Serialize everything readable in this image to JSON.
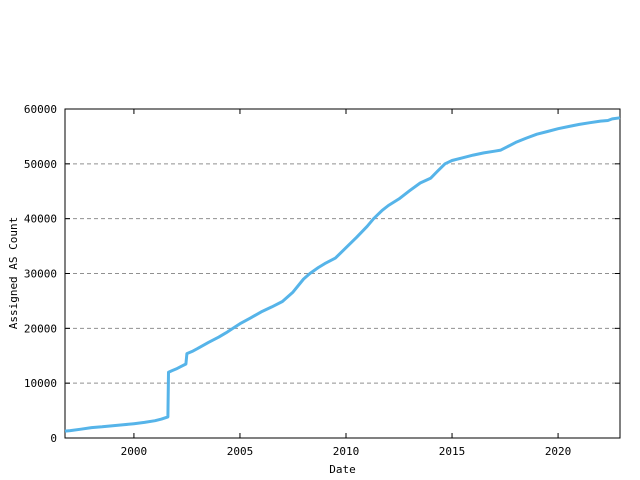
{
  "chart_data": {
    "type": "line",
    "title": "",
    "xlabel": "Date",
    "ylabel": "Assigned AS Count",
    "xlim": [
      1996.75,
      2022.92
    ],
    "ylim": [
      0,
      60000
    ],
    "x_ticks": [
      2000,
      2005,
      2010,
      2015,
      2020
    ],
    "y_ticks": [
      0,
      10000,
      20000,
      30000,
      40000,
      50000,
      60000
    ],
    "grid": "horizontal dashed gridlines at 10000..50000",
    "legend_position": "none",
    "colors": {
      "background": "#ffffff",
      "axis": "#000000",
      "grid": "#909090",
      "line": "#56b4e9"
    },
    "series": [
      {
        "name": "Assigned AS Count",
        "color": "#56b4e9",
        "points": [
          [
            1996.75,
            1250
          ],
          [
            1997.0,
            1350
          ],
          [
            1997.5,
            1600
          ],
          [
            1998.0,
            1900
          ],
          [
            1998.5,
            2050
          ],
          [
            1999.0,
            2250
          ],
          [
            1999.5,
            2400
          ],
          [
            2000.0,
            2600
          ],
          [
            2000.5,
            2850
          ],
          [
            2001.0,
            3150
          ],
          [
            2001.3,
            3450
          ],
          [
            2001.6,
            3850
          ],
          [
            2001.63,
            12000
          ],
          [
            2001.8,
            12300
          ],
          [
            2002.0,
            12600
          ],
          [
            2002.2,
            13000
          ],
          [
            2002.45,
            13500
          ],
          [
            2002.5,
            15400
          ],
          [
            2002.75,
            15800
          ],
          [
            2003.0,
            16300
          ],
          [
            2003.5,
            17400
          ],
          [
            2004.0,
            18400
          ],
          [
            2004.35,
            19200
          ],
          [
            2004.67,
            20000
          ],
          [
            2005.0,
            20850
          ],
          [
            2005.5,
            21900
          ],
          [
            2006.0,
            23000
          ],
          [
            2006.5,
            23900
          ],
          [
            2007.0,
            24900
          ],
          [
            2007.5,
            26600
          ],
          [
            2008.0,
            29000
          ],
          [
            2008.3,
            30000
          ],
          [
            2008.7,
            31100
          ],
          [
            2009.0,
            31800
          ],
          [
            2009.5,
            32800
          ],
          [
            2010.0,
            34700
          ],
          [
            2010.5,
            36600
          ],
          [
            2011.0,
            38600
          ],
          [
            2011.3,
            40000
          ],
          [
            2011.7,
            41500
          ],
          [
            2012.0,
            42400
          ],
          [
            2012.5,
            43600
          ],
          [
            2013.0,
            45100
          ],
          [
            2013.5,
            46500
          ],
          [
            2014.0,
            47400
          ],
          [
            2014.3,
            48600
          ],
          [
            2014.67,
            50000
          ],
          [
            2015.0,
            50600
          ],
          [
            2015.5,
            51100
          ],
          [
            2016.0,
            51600
          ],
          [
            2016.5,
            52000
          ],
          [
            2017.0,
            52300
          ],
          [
            2017.3,
            52500
          ],
          [
            2017.6,
            53100
          ],
          [
            2018.0,
            53900
          ],
          [
            2018.5,
            54700
          ],
          [
            2019.0,
            55400
          ],
          [
            2019.5,
            55900
          ],
          [
            2020.0,
            56400
          ],
          [
            2020.5,
            56800
          ],
          [
            2021.0,
            57200
          ],
          [
            2021.5,
            57500
          ],
          [
            2022.0,
            57800
          ],
          [
            2022.35,
            57900
          ],
          [
            2022.55,
            58200
          ],
          [
            2022.92,
            58400
          ]
        ]
      }
    ]
  }
}
